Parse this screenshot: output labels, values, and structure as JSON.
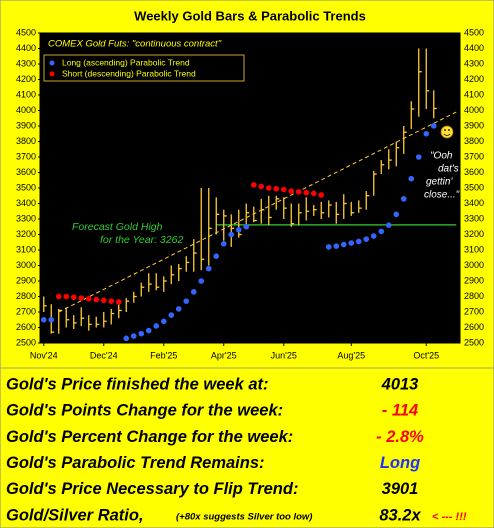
{
  "chart_data": {
    "type": "ohlc",
    "title": "Weekly Gold Bars & Parabolic Trends",
    "subtitle": "COMEX Gold Futs:  \"continuous contract\"",
    "xlim": [
      -0.5,
      55.5
    ],
    "xticks": [
      {
        "value": 0,
        "label": "Nov'24"
      },
      {
        "value": 8,
        "label": "Dec'24"
      },
      {
        "value": 16,
        "label": "Feb'25"
      },
      {
        "value": 24,
        "label": "Apr'25"
      },
      {
        "value": 32,
        "label": "Jun'25"
      },
      {
        "value": 41,
        "label": "Aug'25"
      },
      {
        "value": 51,
        "label": "Oct'25"
      }
    ],
    "ylim": [
      2500,
      4500
    ],
    "yticks": [
      2500,
      2600,
      2700,
      2800,
      2900,
      3000,
      3100,
      3200,
      3300,
      3400,
      3500,
      3600,
      3700,
      3800,
      3900,
      4000,
      4100,
      4200,
      4300,
      4400,
      4500
    ],
    "bars": {
      "color": "#ffcc33",
      "high": [
        2800,
        2750,
        2720,
        2730,
        2680,
        2730,
        2680,
        2670,
        2700,
        2720,
        2760,
        2790,
        2830,
        2890,
        2950,
        2950,
        2930,
        3000,
        3010,
        3060,
        3170,
        3500,
        3500,
        3440,
        3360,
        3330,
        3360,
        3400,
        3380,
        3430,
        3450,
        3450,
        3440,
        3400,
        3400,
        3440,
        3390,
        3410,
        3420,
        3410,
        3460,
        3410,
        3420,
        3480,
        3610,
        3680,
        3750,
        3800,
        3900,
        4060,
        4400,
        4400,
        4130
      ],
      "low": [
        2700,
        2560,
        2560,
        2600,
        2590,
        2610,
        2580,
        2600,
        2600,
        2620,
        2660,
        2700,
        2760,
        2800,
        2830,
        2840,
        2830,
        2880,
        2900,
        2960,
        2960,
        2970,
        3000,
        3200,
        3160,
        3120,
        3180,
        3250,
        3280,
        3270,
        3260,
        3360,
        3300,
        3250,
        3260,
        3290,
        3320,
        3300,
        3310,
        3270,
        3300,
        3320,
        3340,
        3360,
        3450,
        3590,
        3620,
        3640,
        3720,
        3880,
        3960,
        4010,
        3950
      ],
      "close": [
        2740,
        2570,
        2710,
        2650,
        2630,
        2660,
        2620,
        2620,
        2640,
        2690,
        2710,
        2770,
        2800,
        2860,
        2880,
        2860,
        2900,
        2940,
        2980,
        3020,
        3080,
        3040,
        3240,
        3330,
        3320,
        3240,
        3200,
        3340,
        3290,
        3360,
        3310,
        3430,
        3370,
        3270,
        3340,
        3350,
        3360,
        3340,
        3390,
        3330,
        3400,
        3340,
        3370,
        3450,
        3590,
        3650,
        3680,
        3760,
        3860,
        4010,
        4250,
        4127,
        4013
      ]
    },
    "series": [
      {
        "name": "Long (ascending) Parabolic Trend",
        "color": "#3366ff",
        "values": [
          2650,
          2650,
          null,
          null,
          null,
          null,
          null,
          null,
          null,
          null,
          null,
          2530,
          2545,
          2560,
          2580,
          2610,
          2640,
          2680,
          2720,
          2770,
          2830,
          2900,
          2980,
          3060,
          3140,
          3200,
          3230,
          3250,
          null,
          null,
          null,
          null,
          null,
          null,
          null,
          null,
          null,
          null,
          3120,
          3125,
          3135,
          3145,
          3155,
          3170,
          3190,
          3220,
          3260,
          3330,
          3430,
          3560,
          3700,
          3850,
          3901
        ]
      },
      {
        "name": "Short (descending) Parabolic Trend",
        "color": "#ff0000",
        "values": [
          null,
          null,
          2800,
          2800,
          2795,
          2790,
          2785,
          2780,
          2775,
          2770,
          2765,
          null,
          null,
          null,
          null,
          null,
          null,
          null,
          null,
          null,
          null,
          null,
          null,
          null,
          null,
          null,
          null,
          null,
          3520,
          3510,
          3500,
          3495,
          3490,
          3480,
          3475,
          3470,
          3465,
          3455,
          null,
          null,
          null,
          null,
          null,
          null,
          null,
          null,
          null,
          null,
          null,
          null,
          null,
          null,
          null
        ]
      }
    ],
    "trend_line": {
      "x": [
        2,
        55
      ],
      "values": [
        2700,
        3990
      ],
      "color": "#ffcc33"
    },
    "forecast": {
      "value": 3262,
      "x": [
        23,
        55
      ],
      "color": "#33cc33",
      "label": [
        "Forecast Gold High",
        "for the Year:  3262"
      ]
    },
    "annotation": [
      "\"Ooh",
      "dat's",
      "gettin'",
      "close...\""
    ]
  },
  "table": {
    "rows": [
      {
        "label": "Gold's Price finished the week at:",
        "value": "4013",
        "color": "#000000"
      },
      {
        "label": "Gold's Points Change for the week:",
        "value": "- 114",
        "color": "#ff0000"
      },
      {
        "label": "Gold's Percent Change for the week:",
        "value": "- 2.8%",
        "color": "#ff0000"
      },
      {
        "label": "Gold's Parabolic Trend Remains:",
        "value": "Long",
        "color": "#1a33ff"
      },
      {
        "label": "Gold's Price Necessary to Flip Trend:",
        "value": "3901",
        "color": "#000000"
      },
      {
        "label": "Gold/Silver Ratio,",
        "note": "(+80x suggests Silver too low)",
        "value": "83.2x",
        "flag": "< --- !!!",
        "color": "#000000"
      }
    ]
  }
}
